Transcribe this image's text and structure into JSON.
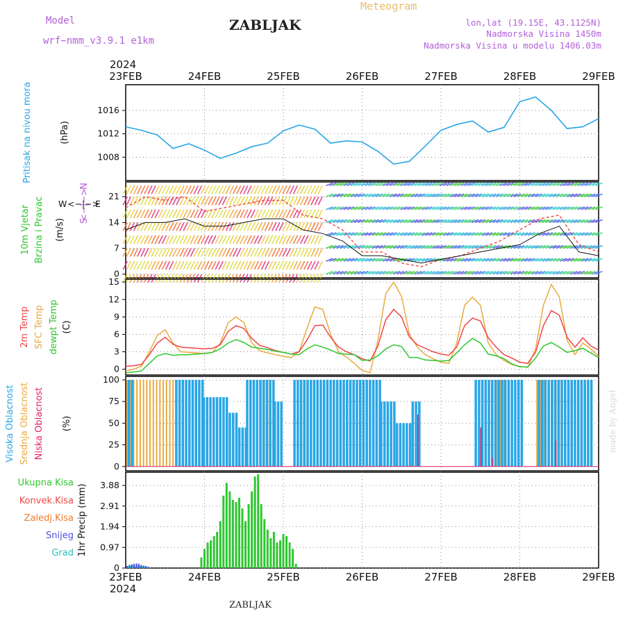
{
  "header": {
    "model_label": "Model",
    "model_value": "wrf−nmm_v3.9.1  e1km",
    "station": "ZABLJAK",
    "meteogram": "Meteogram",
    "lonlat": "lon,lat (19.15E, 43.1125N)",
    "altitude": "Nadmorska Visina 1450m",
    "model_altitude": "Nadmorska Visina u modelu 1406.03m"
  },
  "time_axis": {
    "year": "2024",
    "days": [
      "23FEB",
      "24FEB",
      "25FEB",
      "26FEB",
      "27FEB",
      "28FEB",
      "29FEB"
    ]
  },
  "footer": {
    "station": "ZABLJAK",
    "credit": "made by Angel"
  },
  "colors": {
    "pressure": "#29a6e6",
    "tmp2m": "#f04545",
    "sfc": "#e8aa3e",
    "dew": "#2ec62e",
    "high_cloud": "#29a6e6",
    "mid_cloud": "#e8aa3e",
    "low_cloud": "#e0226a",
    "total_precip": "#2ec62e",
    "conv_precip": "#f04545",
    "frz_precip": "#f07a2a",
    "snow": "#5050e0",
    "grad": "#28c0c0"
  },
  "chart_data": [
    {
      "id": "pressure",
      "type": "line",
      "ylabel": "Pritisak na nivou mora",
      "unit": "(hPa)",
      "yticks": [
        1008,
        1012,
        1016
      ],
      "ylim": [
        1004,
        1020.4
      ],
      "x_day": [
        0,
        0.2,
        0.4,
        0.6,
        0.8,
        1.0,
        1.2,
        1.4,
        1.6,
        1.8,
        2.0,
        2.2,
        2.4,
        2.6,
        2.8,
        3.0,
        3.2,
        3.4,
        3.6,
        3.8,
        4.0,
        4.2,
        4.4,
        4.6,
        4.8,
        5.0,
        5.2,
        5.4,
        5.6,
        5.8,
        6.0
      ],
      "series": [
        {
          "values": [
            1013.2,
            1012.6,
            1011.8,
            1009.5,
            1010.3,
            1009.2,
            1007.8,
            1008.7,
            1009.8,
            1010.4,
            1012.5,
            1013.5,
            1012.8,
            1010.4,
            1010.8,
            1010.6,
            1009.0,
            1006.8,
            1007.3,
            1009.9,
            1012.6,
            1013.6,
            1014.2,
            1012.3,
            1013.1,
            1017.5,
            1018.3,
            1016.0,
            1012.9,
            1013.2,
            1014.6
          ]
        }
      ]
    },
    {
      "id": "wind",
      "type": "line",
      "ylabel": [
        "10m Vjetar",
        "Brzina i Pravac"
      ],
      "unit": "(m/s)",
      "compass_labels": [
        "W",
        "<−|−>",
        "E",
        "N",
        "<−|−>",
        "S"
      ],
      "yticks": [
        0,
        7,
        14,
        21
      ],
      "ylim": [
        -1,
        25
      ],
      "x_day": [
        0,
        0.25,
        0.5,
        0.75,
        1.0,
        1.25,
        1.5,
        1.75,
        2.0,
        2.25,
        2.5,
        2.75,
        3.0,
        3.25,
        3.5,
        3.75,
        4.0,
        4.25,
        4.5,
        4.75,
        5.0,
        5.25,
        5.5,
        5.75,
        6.0
      ],
      "series": [
        {
          "values": [
            12,
            14,
            14,
            15,
            13,
            13,
            14,
            15,
            15,
            12,
            11,
            9,
            5,
            5,
            4,
            3,
            4,
            5,
            6,
            7,
            8,
            11,
            13,
            6,
            5
          ]
        },
        {
          "values": [
            18,
            21,
            20,
            21,
            17,
            18,
            19,
            20,
            20,
            16,
            15,
            12,
            6,
            6,
            3,
            2,
            4,
            5,
            7,
            9,
            12,
            15,
            16,
            8,
            6
          ]
        }
      ]
    },
    {
      "id": "temperature",
      "type": "line",
      "ylabel": [
        "2m Temp",
        "SFC Temp",
        "dewpt Temp"
      ],
      "unit": "(C)",
      "yticks": [
        0,
        3,
        6,
        9,
        12,
        15
      ],
      "ylim": [
        -1,
        15.5
      ],
      "x_day": [
        0,
        0.1,
        0.2,
        0.3,
        0.4,
        0.5,
        0.6,
        0.7,
        0.8,
        0.9,
        1.0,
        1.1,
        1.2,
        1.3,
        1.4,
        1.5,
        1.6,
        1.7,
        1.8,
        1.9,
        2.0,
        2.1,
        2.2,
        2.3,
        2.4,
        2.5,
        2.6,
        2.7,
        2.8,
        2.9,
        3.0,
        3.1,
        3.2,
        3.3,
        3.4,
        3.5,
        3.6,
        3.7,
        3.8,
        3.9,
        4.0,
        4.1,
        4.2,
        4.3,
        4.4,
        4.5,
        4.6,
        4.7,
        4.8,
        4.9,
        5.0,
        5.1,
        5.2,
        5.3,
        5.4,
        5.5,
        5.6,
        5.7,
        5.8,
        5.9,
        6.0
      ],
      "series": [
        {
          "name": "2m Temp",
          "values": [
            0.5,
            0.6,
            0.8,
            2.5,
            4.5,
            5.5,
            4.3,
            3.8,
            3.7,
            3.6,
            3.5,
            3.6,
            4.2,
            6.5,
            7.5,
            7.0,
            5.3,
            4.1,
            3.7,
            3.2,
            2.9,
            2.6,
            3.0,
            5.0,
            7.5,
            7.6,
            5.5,
            3.8,
            3.0,
            2.5,
            1.8,
            1.4,
            4.0,
            8.5,
            10.3,
            9.0,
            5.5,
            4.2,
            3.6,
            3.0,
            2.6,
            2.4,
            3.8,
            7.5,
            8.8,
            8.3,
            5.4,
            3.8,
            2.5,
            1.9,
            1.2,
            1.0,
            2.9,
            7.5,
            10.1,
            9.3,
            5.5,
            3.8,
            5.4,
            4.0,
            3.3
          ]
        },
        {
          "name": "SFC Temp",
          "values": [
            -0.3,
            0.0,
            0.5,
            3.0,
            5.8,
            6.8,
            4.5,
            3.0,
            2.9,
            2.8,
            2.7,
            2.9,
            4.5,
            8.0,
            9.0,
            8.0,
            4.5,
            3.2,
            2.8,
            2.5,
            2.2,
            2.0,
            3.0,
            7.0,
            10.7,
            10.3,
            6.0,
            3.0,
            2.1,
            1.0,
            -0.2,
            -0.6,
            5.0,
            13.0,
            15.0,
            12.5,
            6.0,
            3.8,
            2.5,
            1.8,
            1.2,
            1.0,
            4.5,
            11.0,
            12.4,
            11.0,
            4.5,
            2.5,
            1.5,
            0.8,
            0.5,
            0.3,
            3.5,
            11.0,
            14.6,
            12.5,
            5.0,
            2.5,
            4.5,
            3.5,
            2.2
          ]
        },
        {
          "name": "dewpt Temp",
          "values": [
            -0.6,
            -0.5,
            -0.3,
            1.0,
            2.3,
            2.7,
            2.4,
            2.5,
            2.5,
            2.6,
            2.7,
            2.9,
            3.5,
            4.5,
            5.1,
            4.6,
            3.8,
            3.6,
            3.4,
            3.1,
            2.9,
            2.6,
            2.5,
            3.5,
            4.2,
            3.8,
            3.3,
            2.7,
            2.6,
            2.5,
            1.5,
            1.6,
            2.3,
            3.5,
            4.2,
            3.9,
            2.0,
            2.0,
            1.6,
            1.5,
            1.4,
            1.5,
            2.8,
            4.2,
            5.3,
            4.5,
            2.6,
            2.3,
            1.8,
            0.9,
            0.4,
            0.4,
            1.9,
            4.0,
            4.6,
            3.8,
            2.9,
            3.2,
            3.6,
            2.8,
            2.0
          ]
        }
      ]
    },
    {
      "id": "clouds",
      "type": "bar",
      "ylabel": [
        "Visoka Oblacnost",
        "Srednja Oblacnost",
        "Niska Oblacnost"
      ],
      "unit": "(%)",
      "yticks": [
        0,
        25,
        50,
        75,
        100
      ],
      "ylim": [
        -5,
        104
      ],
      "high_segments": [
        {
          "from": 0.0,
          "to": 0.08,
          "value": 100
        },
        {
          "from": 0.6,
          "to": 0.95,
          "value": 100
        },
        {
          "from": 0.95,
          "to": 1.28,
          "value": 80
        },
        {
          "from": 1.28,
          "to": 1.4,
          "value": 62
        },
        {
          "from": 1.4,
          "to": 1.5,
          "value": 45
        },
        {
          "from": 1.5,
          "to": 1.85,
          "value": 100
        },
        {
          "from": 1.85,
          "to": 1.95,
          "value": 75
        },
        {
          "from": 2.1,
          "to": 2.6,
          "value": 100
        },
        {
          "from": 2.6,
          "to": 3.2,
          "value": 100
        },
        {
          "from": 3.2,
          "to": 3.4,
          "value": 75
        },
        {
          "from": 3.4,
          "to": 3.6,
          "value": 50
        },
        {
          "from": 3.6,
          "to": 3.7,
          "value": 75
        },
        {
          "from": 4.4,
          "to": 5.0,
          "value": 100
        },
        {
          "from": 5.2,
          "to": 5.9,
          "value": 100
        }
      ],
      "mid_segments": [
        {
          "from": 0.0,
          "to": 0.85,
          "value": 100
        },
        {
          "from": 1.7,
          "to": 1.8,
          "value": 100
        },
        {
          "from": 2.2,
          "to": 2.3,
          "value": 100
        },
        {
          "from": 4.7,
          "to": 4.8,
          "value": 100
        },
        {
          "from": 5.2,
          "to": 5.3,
          "value": 100
        },
        {
          "from": 5.4,
          "to": 5.5,
          "value": 100
        }
      ],
      "low_bars": [
        {
          "x": 3.7,
          "value": 60
        },
        {
          "x": 4.5,
          "value": 45
        },
        {
          "x": 4.65,
          "value": 10
        },
        {
          "x": 5.45,
          "value": 30
        }
      ]
    },
    {
      "id": "precip",
      "type": "bar",
      "ylabel": [
        "Ukupna Kisa",
        "Konvek.Kisa",
        "Zaledj.Kisa",
        "Snijeg",
        "Grad"
      ],
      "axis_label": "1hr Precip (mm)",
      "yticks": [
        0,
        0.97,
        1.94,
        2.91,
        3.88
      ],
      "ylim": [
        0,
        4.5
      ],
      "total_hour_offset_days": [
        0.96,
        1.0,
        1.04,
        1.08,
        1.12,
        1.16,
        1.2,
        1.24,
        1.28,
        1.32,
        1.36,
        1.4,
        1.44,
        1.48,
        1.52,
        1.56,
        1.6,
        1.64,
        1.68,
        1.72,
        1.76,
        1.8,
        1.84,
        1.88,
        1.92,
        1.96,
        2.0,
        2.04,
        2.08,
        2.12,
        2.16
      ],
      "total_values": [
        0.5,
        0.9,
        1.2,
        1.3,
        1.5,
        1.7,
        2.2,
        3.4,
        4.0,
        3.6,
        3.2,
        3.1,
        3.3,
        2.8,
        2.2,
        3.0,
        3.6,
        4.3,
        4.4,
        3.0,
        2.3,
        1.8,
        1.4,
        1.7,
        1.2,
        1.3,
        1.6,
        1.5,
        1.2,
        0.9,
        0.2
      ],
      "snow_grad_hour_offset_days": [
        0.0,
        0.03,
        0.06,
        0.09,
        0.12,
        0.15,
        0.18,
        0.21,
        0.24,
        0.27
      ],
      "snow_values": [
        0.1,
        0.15,
        0.18,
        0.2,
        0.22,
        0.2,
        0.15,
        0.12,
        0.1,
        0.06
      ],
      "grad_values": [
        0.08,
        0.12,
        0.14,
        0.1,
        0.12,
        0.1,
        0.08,
        0.06,
        0.05,
        0.04
      ]
    }
  ]
}
